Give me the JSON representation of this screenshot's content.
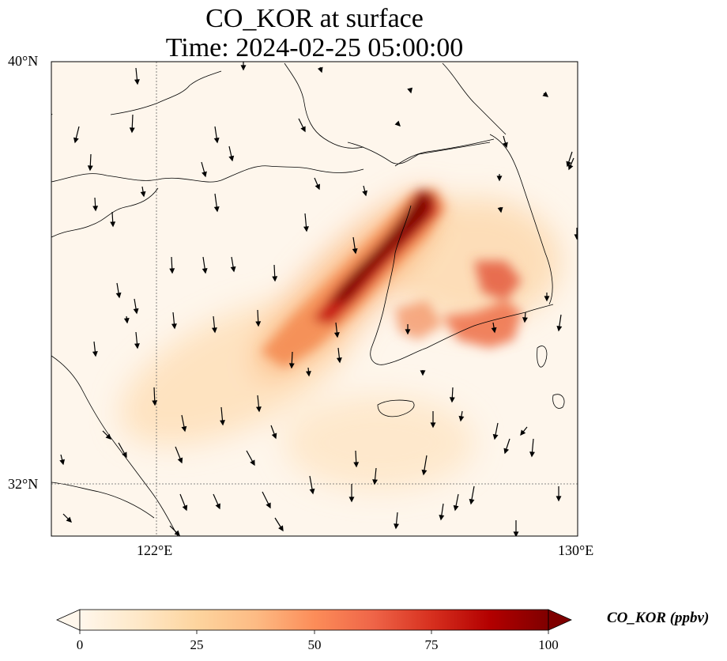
{
  "title": {
    "line1": "CO_KOR at surface",
    "line2": "Time: 2024-02-25 05:00:00"
  },
  "axes": {
    "lat_ticks": [
      "40°N",
      "32°N"
    ],
    "lon_ticks": [
      "122°E",
      "130°E"
    ],
    "lat_range": [
      31,
      40
    ],
    "lon_range": [
      120,
      130
    ],
    "gridlines": "dotted at 122°E and 32°N"
  },
  "colorbar": {
    "label": "CO_KOR (ppbv)",
    "ticks": [
      "0",
      "25",
      "50",
      "75",
      "100"
    ],
    "range": [
      0,
      100
    ],
    "extend": "both",
    "colormap": "OrRd",
    "colors": [
      "#fff7ec",
      "#fee8c8",
      "#fdd49e",
      "#fdbb84",
      "#fc8d59",
      "#ef6548",
      "#d7301f",
      "#b30000",
      "#7f0000"
    ]
  },
  "map": {
    "variable": "CO_KOR",
    "level": "surface",
    "wind_vectors": "shown as black arrows"
  }
}
